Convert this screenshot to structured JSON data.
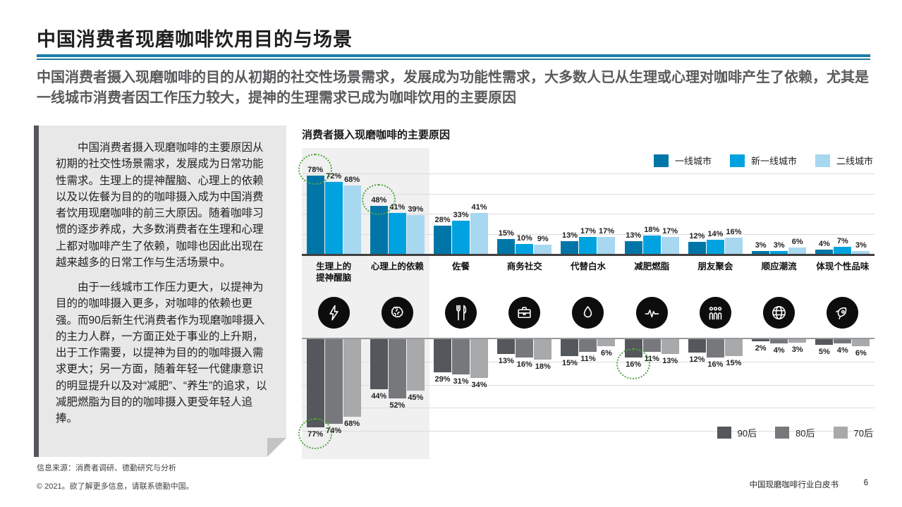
{
  "page": {
    "title": "中国消费者现磨咖啡饮用目的与场景",
    "subtitle": "中国消费者摄入现磨咖啡的目的从初期的社交性场景需求，发展成为功能性需求，大多数人已从生理或心理对咖啡产生了依赖，尤其是一线城市消费者因工作压力较大，提神的生理需求已成为咖啡饮用的主要原因"
  },
  "sidebar": {
    "paragraph1": "中国消费者摄入现磨咖啡的主要原因从初期的社交性场景需求，发展成为日常功能性需求。生理上的提神醒脑、心理上的依赖以及以佐餐为目的的咖啡摄入成为中国消费者饮用现磨咖啡的前三大原因。随着咖啡习惯的逐步养成，大多数消费者在生理和心理上都对咖啡产生了依赖，咖啡也因此出现在越来越多的日常工作与生活场景中。",
    "paragraph2": "由于一线城市工作压力更大，以提神为目的的咖啡摄入更多，对咖啡的依赖也更强。而90后新生代消费者作为现磨咖啡摄入的主力人群，一方面正处于事业的上升期，出于工作需要，以提神为目的的咖啡摄入需求更大；另一方面，随着年轻一代健康意识的明显提升以及对“减肥”、“养生”的追求，以减肥燃脂为目的的咖啡摄入更受年轻人追捧。"
  },
  "chart_data": {
    "type": "bar",
    "title": "消费者摄入现磨咖啡的主要原因",
    "unit": "%",
    "categories": [
      "生理上的\n提神醒脑",
      "心理上的依赖",
      "佐餐",
      "商务社交",
      "代替白水",
      "减肥燃脂",
      "朋友聚会",
      "顺应潮流",
      "体现个性品味"
    ],
    "icons": [
      "lightning",
      "brain",
      "cutlery",
      "briefcase",
      "water-drop",
      "pulse",
      "people",
      "globe",
      "rocket"
    ],
    "series_top": [
      {
        "name": "一线城市",
        "color": "#0076a8",
        "values": [
          78,
          48,
          28,
          15,
          13,
          13,
          12,
          3,
          4
        ]
      },
      {
        "name": "新一线城市",
        "color": "#00a3e0",
        "values": [
          72,
          41,
          33,
          10,
          17,
          18,
          14,
          3,
          7
        ]
      },
      {
        "name": "二线城市",
        "color": "#a8d7f0",
        "values": [
          68,
          39,
          41,
          9,
          17,
          17,
          16,
          6,
          3
        ]
      }
    ],
    "series_bottom": [
      {
        "name": "90后",
        "color": "#54575b",
        "values": [
          77,
          44,
          29,
          13,
          15,
          16,
          12,
          2,
          5
        ]
      },
      {
        "name": "80后",
        "color": "#76787b",
        "values": [
          74,
          52,
          31,
          16,
          11,
          11,
          16,
          4,
          4
        ]
      },
      {
        "name": "70后",
        "color": "#a8a9ab",
        "values": [
          68,
          45,
          34,
          18,
          6,
          13,
          15,
          3,
          6
        ]
      }
    ],
    "highlights_top": [
      [
        0,
        0
      ],
      [
        1,
        0
      ]
    ],
    "highlights_bottom": [
      [
        0,
        0
      ],
      [
        5,
        0
      ]
    ],
    "highlight_color": "#55a546",
    "legend_top_position": "top-right",
    "legend_bottom_position": "bottom-right",
    "grid": "on",
    "ylim_top": [
      0,
      80
    ],
    "ylim_bottom": [
      0,
      80
    ]
  },
  "colors": {
    "accent_blue": "#1b7ca8",
    "subtitle_gray": "#595a5c",
    "panel_bg": "#e8e8e9",
    "panel_bar": "#53565a",
    "chart_highlight_bg": "#f0f0f0",
    "baseline": "#404040",
    "gridline": "#dcdcdc",
    "icon_bg": "#0d0d0d"
  },
  "footer": {
    "source": "信息来源：消费者调研、德勤研究与分析",
    "copyright": "© 2021。欲了解更多信息，请联系德勤中国。",
    "doc_title": "中国现磨咖啡行业白皮书",
    "page_number": "6"
  }
}
